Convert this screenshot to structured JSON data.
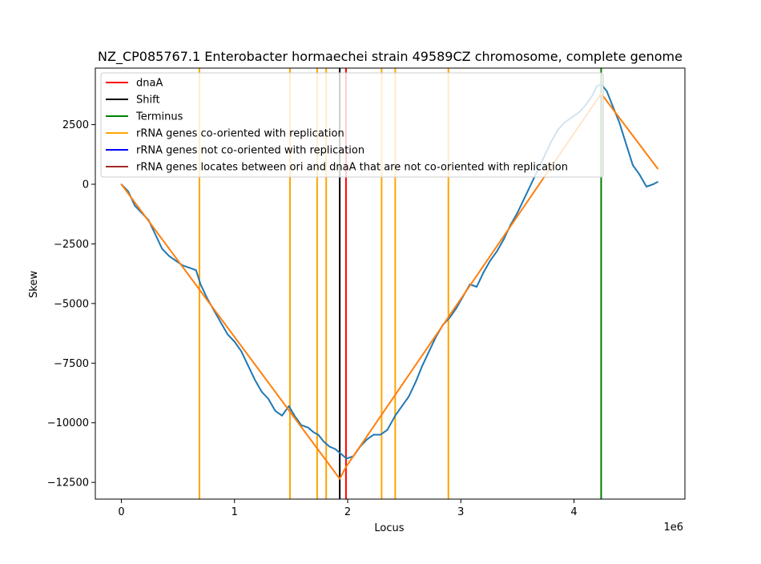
{
  "chart_data": {
    "type": "line",
    "title": "NZ_CP085767.1 Enterobacter hormaechei strain 49589CZ chromosome, complete genome",
    "xlabel": "Locus",
    "ylabel": "Skew",
    "x_offset_label": "1e6",
    "xlim": [
      -230000,
      4980000
    ],
    "ylim": [
      -13200,
      4870.0
    ],
    "xticks": [
      0,
      1,
      2,
      3,
      4
    ],
    "xtick_values": [
      0,
      1000000,
      2000000,
      3000000,
      4000000
    ],
    "yticks": [
      2500,
      0,
      -2500,
      -5000,
      -7500,
      -10000,
      -12500
    ],
    "ytick_labels": [
      "2500",
      "0",
      "−2500",
      "−5000",
      "−7500",
      "−10000",
      "−12500"
    ],
    "grid": false,
    "legend_position": "top-left",
    "legend": [
      {
        "label": "dnaA",
        "color": "#ff0000"
      },
      {
        "label": "Shift",
        "color": "#000000"
      },
      {
        "label": "Terminus",
        "color": "#008000"
      },
      {
        "label": "rRNA genes co-oriented with replication",
        "color": "#ffa500"
      },
      {
        "label": "rRNA genes not co-oriented with replication",
        "color": "#0000ff"
      },
      {
        "label": "rRNA genes locates between ori and dnaA that are not co-oriented with replication",
        "color": "#a52a2a"
      }
    ],
    "vertical_markers": {
      "rrna_co_oriented": [
        690000,
        1490000,
        1730000,
        1810000,
        2300000,
        2420000,
        2890000
      ],
      "shift": 1930000,
      "dnaA": 1985000,
      "terminus": 4240000
    },
    "series": [
      {
        "color": "#1f77b4",
        "x": [
          0,
          60000,
          120000,
          180000,
          240000,
          300000,
          360000,
          420000,
          480000,
          540000,
          600000,
          660000,
          700000,
          760000,
          820000,
          880000,
          940000,
          1000000,
          1060000,
          1120000,
          1180000,
          1240000,
          1300000,
          1360000,
          1420000,
          1480000,
          1530000,
          1590000,
          1650000,
          1700000,
          1740000,
          1790000,
          1840000,
          1890000,
          1940000,
          1990000,
          2050000,
          2110000,
          2170000,
          2230000,
          2290000,
          2350000,
          2420000,
          2480000,
          2540000,
          2600000,
          2660000,
          2720000,
          2780000,
          2840000,
          2900000,
          2960000,
          3020000,
          3080000,
          3140000,
          3200000,
          3260000,
          3320000,
          3380000,
          3440000,
          3500000,
          3560000,
          3620000,
          3680000,
          3740000,
          3800000,
          3860000,
          3920000,
          3980000,
          4040000,
          4100000,
          4160000,
          4200000,
          4240000,
          4290000,
          4340000,
          4400000,
          4460000,
          4520000,
          4580000,
          4640000,
          4700000,
          4740000
        ],
        "y": [
          0,
          -300,
          -900,
          -1200,
          -1500,
          -2100,
          -2700,
          -3000,
          -3200,
          -3400,
          -3500,
          -3600,
          -4200,
          -4800,
          -5300,
          -5800,
          -6300,
          -6600,
          -7000,
          -7600,
          -8200,
          -8700,
          -9000,
          -9500,
          -9700,
          -9300,
          -9700,
          -10100,
          -10200,
          -10400,
          -10500,
          -10800,
          -11000,
          -11100,
          -11300,
          -11500,
          -11400,
          -11000,
          -10700,
          -10500,
          -10500,
          -10300,
          -9700,
          -9300,
          -8900,
          -8300,
          -7600,
          -7000,
          -6400,
          -5900,
          -5600,
          -5200,
          -4700,
          -4200,
          -4300,
          -3700,
          -3200,
          -2800,
          -2300,
          -1700,
          -1200,
          -600,
          0,
          600,
          1200,
          1800,
          2300,
          2600,
          2800,
          3000,
          3300,
          3700,
          4100,
          4200,
          3900,
          3300,
          2600,
          1700,
          800,
          400,
          -100,
          0,
          100
        ]
      },
      {
        "color": "#ff7f0e",
        "x": [
          0,
          1930000,
          1985000,
          4240000,
          4740000
        ],
        "y": [
          0,
          -12350,
          -11850,
          3800,
          650
        ]
      }
    ]
  }
}
